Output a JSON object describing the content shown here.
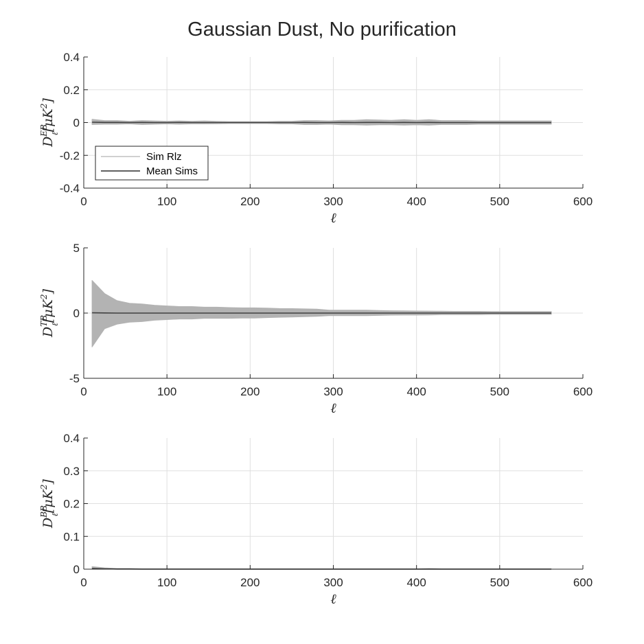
{
  "figure": {
    "title": "Gaussian Dust, No purification"
  },
  "colors": {
    "axis": "#262626",
    "grid": "#dfdfdf",
    "sim": "#b3b3b3",
    "mean": "#404040",
    "background": "#ffffff"
  },
  "chart_data": [
    {
      "type": "line",
      "xlabel": "ℓ",
      "ylabel": {
        "base": "D",
        "sub": "ℓ",
        "sup": "EB",
        "unit": "[μK",
        "unit_sup": "2",
        "unit_close": "]"
      },
      "xlim": [
        0,
        600
      ],
      "ylim": [
        -0.4,
        0.4
      ],
      "xticks": [
        0,
        100,
        200,
        300,
        400,
        500,
        600
      ],
      "yticks": [
        -0.4,
        -0.2,
        0,
        0.2,
        0.4
      ],
      "xtick_labels": [
        "0",
        "100",
        "200",
        "300",
        "400",
        "500",
        "600"
      ],
      "ytick_labels": [
        "-0.4",
        "-0.2",
        "0",
        "0.2",
        "0.4"
      ],
      "grid": true,
      "legend": {
        "placement": "bottom-left",
        "entries": [
          "Sim Rlz",
          "Mean Sims"
        ]
      },
      "x": [
        10,
        25,
        40,
        55,
        70,
        85,
        100,
        115,
        130,
        145,
        160,
        175,
        190,
        205,
        220,
        235,
        250,
        265,
        280,
        295,
        310,
        325,
        340,
        355,
        370,
        385,
        400,
        415,
        430,
        445,
        460,
        475,
        490,
        505,
        520,
        535,
        550,
        562
      ],
      "series": [
        {
          "name": "Sim Rlz",
          "kind": "band",
          "lower": [
            -0.012,
            -0.01,
            -0.01,
            -0.008,
            -0.012,
            -0.01,
            -0.008,
            -0.01,
            -0.008,
            -0.008,
            -0.007,
            -0.006,
            -0.006,
            -0.006,
            -0.006,
            -0.008,
            -0.008,
            -0.012,
            -0.012,
            -0.01,
            -0.014,
            -0.014,
            -0.016,
            -0.014,
            -0.014,
            -0.016,
            -0.014,
            -0.016,
            -0.012,
            -0.012,
            -0.012,
            -0.01,
            -0.01,
            -0.01,
            -0.01,
            -0.01,
            -0.01,
            -0.01
          ],
          "upper": [
            0.02,
            0.012,
            0.012,
            0.008,
            0.012,
            0.01,
            0.008,
            0.01,
            0.008,
            0.01,
            0.007,
            0.006,
            0.006,
            0.006,
            0.006,
            0.008,
            0.008,
            0.012,
            0.012,
            0.01,
            0.014,
            0.014,
            0.018,
            0.016,
            0.014,
            0.018,
            0.014,
            0.018,
            0.012,
            0.012,
            0.012,
            0.01,
            0.01,
            0.01,
            0.01,
            0.01,
            0.01,
            0.01
          ]
        },
        {
          "name": "Mean Sims",
          "kind": "line",
          "values": [
            0.002,
            0.001,
            0.001,
            0.0,
            0.001,
            0.0,
            0.0,
            0.001,
            0.0,
            0.0,
            0.0,
            0.0,
            0.0,
            0.0,
            0.0,
            0.0,
            0.0,
            0.001,
            0.0,
            0.0,
            0.001,
            0.0,
            0.001,
            0.001,
            0.0,
            0.001,
            0.0,
            0.001,
            0.0,
            0.0,
            0.0,
            0.0,
            0.0,
            0.0,
            0.0,
            0.0,
            0.0,
            0.0
          ]
        }
      ]
    },
    {
      "type": "line",
      "xlabel": "ℓ",
      "ylabel": {
        "base": "D",
        "sub": "ℓ",
        "sup": "TB",
        "unit": "[μK",
        "unit_sup": "2",
        "unit_close": "]"
      },
      "xlim": [
        0,
        600
      ],
      "ylim": [
        -5,
        5
      ],
      "xticks": [
        0,
        100,
        200,
        300,
        400,
        500,
        600
      ],
      "yticks": [
        -5,
        0,
        5
      ],
      "xtick_labels": [
        "0",
        "100",
        "200",
        "300",
        "400",
        "500",
        "600"
      ],
      "ytick_labels": [
        "-5",
        "0",
        "5"
      ],
      "grid": true,
      "x": [
        10,
        25,
        40,
        55,
        70,
        85,
        100,
        115,
        130,
        145,
        160,
        175,
        190,
        205,
        220,
        235,
        250,
        265,
        280,
        295,
        310,
        325,
        340,
        355,
        370,
        385,
        400,
        415,
        430,
        445,
        460,
        475,
        490,
        505,
        520,
        535,
        550,
        562
      ],
      "series": [
        {
          "name": "Sim Rlz",
          "kind": "band",
          "lower": [
            -2.6,
            -1.2,
            -0.85,
            -0.7,
            -0.65,
            -0.55,
            -0.5,
            -0.45,
            -0.45,
            -0.4,
            -0.4,
            -0.4,
            -0.38,
            -0.38,
            -0.35,
            -0.32,
            -0.3,
            -0.28,
            -0.25,
            -0.2,
            -0.2,
            -0.2,
            -0.2,
            -0.18,
            -0.16,
            -0.15,
            -0.15,
            -0.14,
            -0.12,
            -0.12,
            -0.12,
            -0.12,
            -0.1,
            -0.1,
            -0.1,
            -0.1,
            -0.1,
            -0.1
          ],
          "upper": [
            2.5,
            1.5,
            0.95,
            0.75,
            0.7,
            0.6,
            0.55,
            0.5,
            0.5,
            0.45,
            0.45,
            0.42,
            0.4,
            0.4,
            0.38,
            0.35,
            0.34,
            0.32,
            0.3,
            0.22,
            0.22,
            0.22,
            0.22,
            0.2,
            0.18,
            0.17,
            0.16,
            0.15,
            0.14,
            0.13,
            0.13,
            0.13,
            0.12,
            0.12,
            0.12,
            0.12,
            0.12,
            0.12
          ]
        },
        {
          "name": "Mean Sims",
          "kind": "line",
          "values": [
            0.02,
            0.01,
            0.0,
            0.0,
            0.0,
            0.0,
            0.0,
            0.0,
            0.0,
            0.0,
            0.0,
            0.0,
            0.0,
            0.0,
            0.0,
            0.0,
            0.0,
            0.0,
            0.0,
            0.0,
            0.0,
            0.0,
            0.0,
            0.0,
            0.0,
            0.0,
            0.0,
            0.0,
            0.0,
            0.0,
            0.0,
            0.0,
            0.0,
            0.0,
            0.0,
            0.0,
            0.0,
            0.0
          ]
        }
      ]
    },
    {
      "type": "line",
      "xlabel": "ℓ",
      "ylabel": {
        "base": "D",
        "sub": "ℓ",
        "sup": "BB",
        "unit": "[μK",
        "unit_sup": "2",
        "unit_close": "]"
      },
      "xlim": [
        0,
        600
      ],
      "ylim": [
        0,
        0.4
      ],
      "xticks": [
        0,
        100,
        200,
        300,
        400,
        500,
        600
      ],
      "yticks": [
        0,
        0.1,
        0.2,
        0.3,
        0.4
      ],
      "xtick_labels": [
        "0",
        "100",
        "200",
        "300",
        "400",
        "500",
        "600"
      ],
      "ytick_labels": [
        "0",
        "0.1",
        "0.2",
        "0.3",
        "0.4"
      ],
      "grid": true,
      "x": [
        10,
        25,
        40,
        55,
        70,
        85,
        100,
        115,
        130,
        145,
        160,
        175,
        190,
        205,
        220,
        235,
        250,
        265,
        280,
        295,
        310,
        325,
        340,
        355,
        370,
        385,
        400,
        415,
        430,
        445,
        460,
        475,
        490,
        505,
        520,
        535,
        550,
        562
      ],
      "series": [
        {
          "name": "Sim Rlz",
          "kind": "band",
          "lower": [
            0.0,
            0.0,
            0.0,
            0.0,
            0.0,
            0.0,
            0.0,
            0.0,
            0.0,
            0.0,
            0.0,
            0.0,
            0.0,
            0.0,
            0.0,
            0.0,
            0.0,
            0.0,
            0.0,
            0.0,
            0.0,
            0.0,
            0.0,
            0.0,
            0.0,
            0.0,
            0.0,
            0.0,
            0.0,
            0.0,
            0.0,
            0.0,
            0.0,
            0.0,
            0.0,
            0.0,
            0.0,
            0.0
          ],
          "upper": [
            0.008,
            0.004,
            0.002,
            0.002,
            0.001,
            0.001,
            0.001,
            0.001,
            0.001,
            0.001,
            0.001,
            0.001,
            0.001,
            0.001,
            0.001,
            0.001,
            0.001,
            0.001,
            0.001,
            0.001,
            0.001,
            0.001,
            0.001,
            0.001,
            0.001,
            0.001,
            0.001,
            0.002,
            0.001,
            0.001,
            0.001,
            0.001,
            0.001,
            0.001,
            0.001,
            0.001,
            0.001,
            0.001
          ]
        },
        {
          "name": "Mean Sims",
          "kind": "line",
          "values": [
            0.002,
            0.001,
            0.0005,
            0.0005,
            0.0003,
            0.0003,
            0.0003,
            0.0003,
            0.0003,
            0.0003,
            0.0003,
            0.0003,
            0.0003,
            0.0003,
            0.0003,
            0.0003,
            0.0003,
            0.0003,
            0.0003,
            0.0003,
            0.0003,
            0.0003,
            0.0003,
            0.0003,
            0.0003,
            0.0003,
            0.0003,
            0.0003,
            0.0003,
            0.0003,
            0.0003,
            0.0003,
            0.0003,
            0.0003,
            0.0003,
            0.0003,
            0.0003,
            0.0003
          ]
        }
      ]
    }
  ]
}
